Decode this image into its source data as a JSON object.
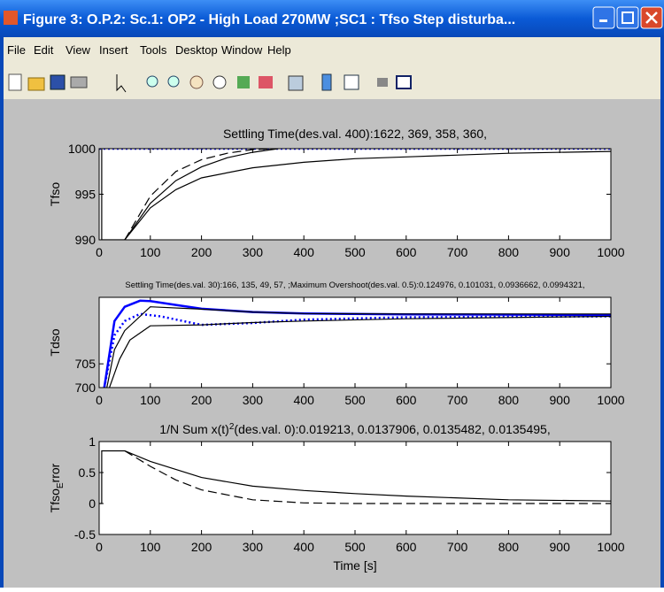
{
  "window": {
    "title": "Figure 3: O.P.2: Sc.1: OP2 - High Load 270MW ;SC1 : Tfso Step disturba...",
    "menu": [
      "File",
      "Edit",
      "View",
      "Insert",
      "Tools",
      "Desktop",
      "Window",
      "Help"
    ]
  },
  "chart_data": [
    {
      "type": "line",
      "title": "Settling Time(des.val. 400):1622, 369, 358, 360,",
      "ylabel": [
        "Tfso"
      ],
      "xlim": [
        0,
        1000
      ],
      "ylim": [
        990,
        1000
      ],
      "xticks": [
        0,
        100,
        200,
        300,
        400,
        500,
        600,
        700,
        800,
        900,
        1000
      ],
      "yticks": [
        990,
        995,
        1000
      ],
      "series": [
        {
          "color": "#0000ff",
          "style": "dotted",
          "x": [
            0,
            1000
          ],
          "values": [
            1000,
            1000
          ]
        },
        {
          "color": "#000000",
          "style": "solid",
          "x": [
            5,
            5,
            50,
            100,
            150,
            200,
            300,
            400,
            500,
            600,
            800,
            1000
          ],
          "values": [
            1000,
            990,
            990,
            993.5,
            995.5,
            996.8,
            997.9,
            998.5,
            998.9,
            999.1,
            999.5,
            999.7
          ]
        },
        {
          "color": "#000000",
          "style": "solid",
          "x": [
            50,
            100,
            150,
            200,
            250,
            300,
            350
          ],
          "values": [
            990,
            994,
            996.5,
            998,
            999,
            999.6,
            1000
          ]
        },
        {
          "color": "#000000",
          "style": "dashed",
          "x": [
            50,
            100,
            150,
            200,
            250,
            300,
            350
          ],
          "values": [
            990,
            994.8,
            997.5,
            998.8,
            999.5,
            999.9,
            1000
          ]
        }
      ]
    },
    {
      "type": "line",
      "title": "Settling Time(des.val. 30):166, 135, 49, 57,   ;Maximum Overshoot(des.val. 0.5):0.124976, 0.101031, 0.0936662, 0.0994321,",
      "ylabel": [
        "Tdso"
      ],
      "xlim": [
        0,
        1000
      ],
      "ylim": [
        700,
        719
      ],
      "xticks": [
        0,
        100,
        200,
        300,
        400,
        500,
        600,
        700,
        800,
        900,
        1000
      ],
      "yticks": [
        700,
        705
      ],
      "series": [
        {
          "color": "#0000ff",
          "style": "solid",
          "x": [
            10,
            30,
            50,
            80,
            100,
            150,
            200,
            300,
            400,
            600,
            1000
          ],
          "values": [
            700,
            714,
            717,
            718.3,
            718.2,
            717.4,
            716.6,
            715.9,
            715.6,
            715.4,
            715.3
          ]
        },
        {
          "color": "#0000ff",
          "style": "dotted",
          "x": [
            10,
            30,
            50,
            80,
            120,
            200,
            300,
            400,
            600,
            1000
          ],
          "values": [
            700,
            711,
            714,
            715.5,
            715,
            713.2,
            713.6,
            714.3,
            714.8,
            715
          ]
        },
        {
          "color": "#000000",
          "style": "solid",
          "x": [
            15,
            30,
            50,
            100,
            200,
            300,
            400,
            600,
            1000
          ],
          "values": [
            700,
            708,
            712,
            717,
            716.5,
            715.9,
            715.6,
            715.5,
            715.5
          ]
        },
        {
          "color": "#000000",
          "style": "solid",
          "x": [
            20,
            40,
            60,
            100,
            200,
            300,
            400,
            600,
            1000
          ],
          "values": [
            700,
            706,
            710,
            713,
            713.2,
            713.7,
            714,
            714.5,
            715
          ]
        }
      ]
    },
    {
      "type": "line",
      "title": [
        "1/N Sum x(t)",
        "2",
        "(des.val. 0):0.019213, 0.0137906, 0.0135482, 0.0135495,"
      ],
      "ylabel": [
        "Tfso",
        "E",
        "rror"
      ],
      "xlabel": "Time [s]",
      "xlim": [
        0,
        1000
      ],
      "ylim": [
        -0.5,
        1
      ],
      "xticks": [
        0,
        100,
        200,
        300,
        400,
        500,
        600,
        700,
        800,
        900,
        1000
      ],
      "yticks": [
        -0.5,
        0,
        0.5,
        1
      ],
      "series": [
        {
          "color": "#000000",
          "style": "solid",
          "x": [
            0,
            5,
            5,
            50,
            100,
            200,
            300,
            400,
            500,
            600,
            800,
            1000
          ],
          "values": [
            0,
            0,
            0.85,
            0.85,
            0.68,
            0.42,
            0.28,
            0.21,
            0.16,
            0.12,
            0.06,
            0.04
          ]
        },
        {
          "color": "#000000",
          "style": "dashed",
          "x": [
            50,
            100,
            150,
            200,
            300,
            400,
            500,
            1000
          ],
          "values": [
            0.85,
            0.6,
            0.38,
            0.22,
            0.06,
            0.01,
            0,
            0
          ]
        }
      ]
    }
  ]
}
